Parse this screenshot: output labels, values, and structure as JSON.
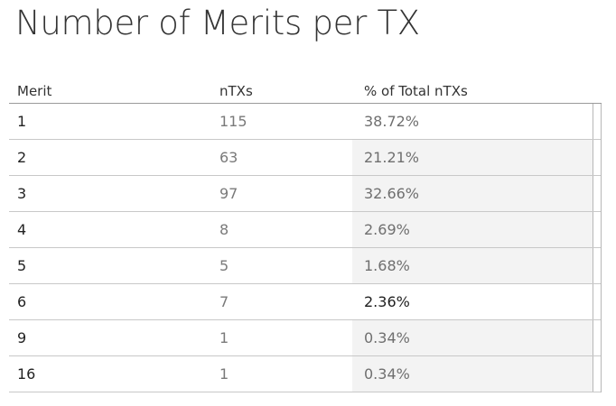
{
  "title": "Number of Merits per TX",
  "table": {
    "headers": {
      "merit": "Merit",
      "ntxs": "nTXs",
      "pct": "% of Total nTXs"
    },
    "rows": [
      {
        "merit": "1",
        "ntxs": "115",
        "pct": "38.72%"
      },
      {
        "merit": "2",
        "ntxs": "63",
        "pct": "21.21%"
      },
      {
        "merit": "3",
        "ntxs": "97",
        "pct": "32.66%"
      },
      {
        "merit": "4",
        "ntxs": "8",
        "pct": "2.69%"
      },
      {
        "merit": "5",
        "ntxs": "5",
        "pct": "1.68%"
      },
      {
        "merit": "6",
        "ntxs": "7",
        "pct": "2.36%"
      },
      {
        "merit": "9",
        "ntxs": "1",
        "pct": "0.34%"
      },
      {
        "merit": "16",
        "ntxs": "1",
        "pct": "0.34%"
      }
    ]
  },
  "colors": {
    "row_highlight": "#f3f3f3",
    "text": "#333333",
    "muted_text": "#7a7a7a"
  }
}
